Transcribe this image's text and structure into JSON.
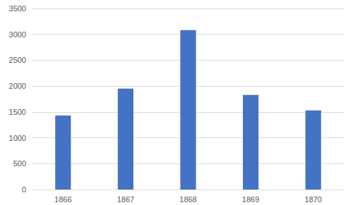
{
  "chart_data": {
    "type": "bar",
    "categories": [
      "1866",
      "1867",
      "1868",
      "1869",
      "1870"
    ],
    "values": [
      1430,
      1950,
      3080,
      1830,
      1530
    ],
    "color": "#4472c4",
    "ylim": [
      0,
      3500
    ],
    "yticks": [
      0,
      500,
      1000,
      1500,
      2000,
      2500,
      3000,
      3500
    ],
    "grid": true
  }
}
